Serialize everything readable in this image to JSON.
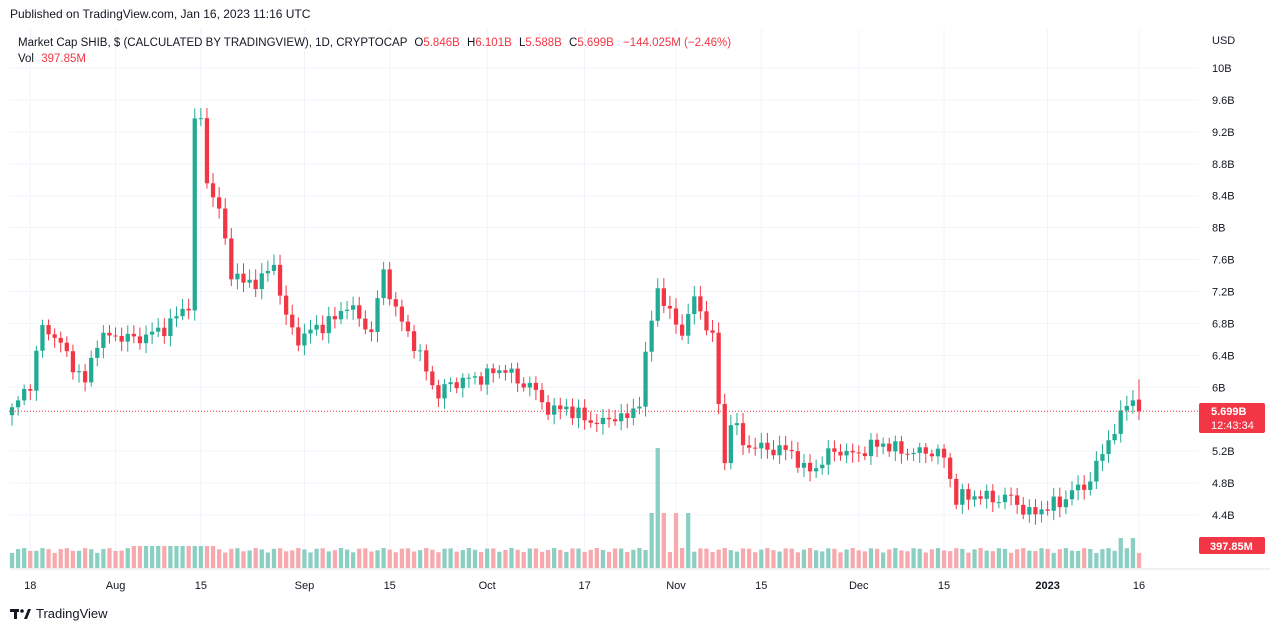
{
  "header": {
    "published": "Published on TradingView.com, Jan 16, 2023 11:16 UTC"
  },
  "legend": {
    "title": "Market Cap SHIB, $ (CALCULATED BY TRADINGVIEW), 1D, CRYPTOCAP",
    "o_label": "O",
    "o_value": "5.846B",
    "h_label": "H",
    "h_value": "6.101B",
    "l_label": "L",
    "l_value": "5.588B",
    "c_label": "C",
    "c_value": "5.699B",
    "change": "−144.025M (−2.46%)",
    "vol_label": "Vol",
    "vol_value": "397.85M"
  },
  "axis": {
    "currency": "USD",
    "price_tick_labels": [
      "10B",
      "9.6B",
      "9.2B",
      "8.8B",
      "8.4B",
      "8B",
      "7.6B",
      "7.2B",
      "6.8B",
      "6.4B",
      "6B",
      "5.2B",
      "4.8B",
      "4.4B"
    ],
    "date_tick_labels": [
      "18",
      "Aug",
      "15",
      "Sep",
      "15",
      "Oct",
      "17",
      "Nov",
      "15",
      "Dec",
      "15",
      "2023",
      "16"
    ]
  },
  "price_badge": {
    "value": "5.699B",
    "countdown": "12:43:34"
  },
  "volume_badge": {
    "value": "397.85M"
  },
  "footer": {
    "brand": "TradingView"
  },
  "colors": {
    "up": "#22ab94",
    "down": "#f23645",
    "up_vol": "#8bcfc3",
    "down_vol": "#f7a9ad",
    "grid": "#f0f3fa",
    "text": "#131722"
  },
  "chart_data": {
    "type": "candlestick",
    "title": "Market Cap SHIB, $ (CALCULATED BY TRADINGVIEW), 1D, CRYPTOCAP",
    "ylabel": "USD",
    "ylim": [
      4.2,
      10.25
    ],
    "x_range": [
      "2022-07-15",
      "2023-01-16"
    ],
    "last": {
      "open": 5.846,
      "high": 6.101,
      "low": 5.588,
      "close": 5.699,
      "volume": "397.85M"
    },
    "close_anchors": [
      [
        "2022-07-15",
        5.7
      ],
      [
        "2022-07-17",
        5.95
      ],
      [
        "2022-07-18",
        6.05
      ],
      [
        "2022-07-20",
        6.75
      ],
      [
        "2022-07-22",
        6.65
      ],
      [
        "2022-07-24",
        6.4
      ],
      [
        "2022-07-27",
        6.05
      ],
      [
        "2022-07-29",
        6.6
      ],
      [
        "2022-08-01",
        6.65
      ],
      [
        "2022-08-04",
        6.6
      ],
      [
        "2022-08-06",
        6.65
      ],
      [
        "2022-08-08",
        6.7
      ],
      [
        "2022-08-10",
        6.8
      ],
      [
        "2022-08-13",
        7.05
      ],
      [
        "2022-08-14",
        9.3
      ],
      [
        "2022-08-15",
        9.35
      ],
      [
        "2022-08-16",
        8.6
      ],
      [
        "2022-08-18",
        8.2
      ],
      [
        "2022-08-20",
        7.45
      ],
      [
        "2022-08-22",
        7.3
      ],
      [
        "2022-08-25",
        7.35
      ],
      [
        "2022-08-27",
        7.55
      ],
      [
        "2022-08-29",
        6.85
      ],
      [
        "2022-08-31",
        6.6
      ],
      [
        "2022-09-03",
        6.75
      ],
      [
        "2022-09-06",
        6.85
      ],
      [
        "2022-09-08",
        7.05
      ],
      [
        "2022-09-10",
        6.85
      ],
      [
        "2022-09-12",
        6.7
      ],
      [
        "2022-09-14",
        7.45
      ],
      [
        "2022-09-16",
        6.95
      ],
      [
        "2022-09-19",
        6.55
      ],
      [
        "2022-09-21",
        6.2
      ],
      [
        "2022-09-23",
        5.9
      ],
      [
        "2022-09-25",
        6.05
      ],
      [
        "2022-09-28",
        6.1
      ],
      [
        "2022-10-01",
        6.15
      ],
      [
        "2022-10-04",
        6.25
      ],
      [
        "2022-10-06",
        6.05
      ],
      [
        "2022-10-08",
        6.05
      ],
      [
        "2022-10-10",
        5.8
      ],
      [
        "2022-10-12",
        5.7
      ],
      [
        "2022-10-14",
        5.75
      ],
      [
        "2022-10-17",
        5.6
      ],
      [
        "2022-10-20",
        5.55
      ],
      [
        "2022-10-22",
        5.65
      ],
      [
        "2022-10-24",
        5.6
      ],
      [
        "2022-10-26",
        5.85
      ],
      [
        "2022-10-28",
        6.85
      ],
      [
        "2022-10-29",
        7.25
      ],
      [
        "2022-10-31",
        6.9
      ],
      [
        "2022-11-02",
        6.7
      ],
      [
        "2022-11-04",
        7.1
      ],
      [
        "2022-11-06",
        6.8
      ],
      [
        "2022-11-07",
        6.6
      ],
      [
        "2022-11-08",
        5.8
      ],
      [
        "2022-11-09",
        5.05
      ],
      [
        "2022-11-10",
        5.6
      ],
      [
        "2022-11-12",
        5.3
      ],
      [
        "2022-11-14",
        5.25
      ],
      [
        "2022-11-17",
        5.22
      ],
      [
        "2022-11-20",
        5.2
      ],
      [
        "2022-11-22",
        4.95
      ],
      [
        "2022-11-24",
        5.0
      ],
      [
        "2022-11-27",
        5.22
      ],
      [
        "2022-11-30",
        5.15
      ],
      [
        "2022-12-03",
        5.25
      ],
      [
        "2022-12-05",
        5.3
      ],
      [
        "2022-12-07",
        5.22
      ],
      [
        "2022-12-10",
        5.18
      ],
      [
        "2022-12-13",
        5.2
      ],
      [
        "2022-12-15",
        5.12
      ],
      [
        "2022-12-17",
        4.6
      ],
      [
        "2022-12-20",
        4.65
      ],
      [
        "2022-12-23",
        4.6
      ],
      [
        "2022-12-26",
        4.62
      ],
      [
        "2022-12-29",
        4.4
      ],
      [
        "2022-12-31",
        4.48
      ],
      [
        "2023-01-03",
        4.55
      ],
      [
        "2023-01-05",
        4.7
      ],
      [
        "2023-01-07",
        4.75
      ],
      [
        "2023-01-09",
        5.0
      ],
      [
        "2023-01-11",
        5.35
      ],
      [
        "2023-01-13",
        5.6
      ],
      [
        "2023-01-14",
        5.82
      ],
      [
        "2023-01-15",
        5.85
      ],
      [
        "2023-01-16",
        5.7
      ]
    ],
    "volume_spikes": [
      [
        "2022-10-28",
        "high"
      ],
      [
        "2022-10-29",
        "very high"
      ],
      [
        "2022-10-30",
        "high"
      ],
      [
        "2022-11-01",
        "high"
      ],
      [
        "2022-11-03",
        "high"
      ],
      [
        "2023-01-15",
        "medium"
      ],
      [
        "2023-01-13",
        "medium"
      ]
    ]
  }
}
